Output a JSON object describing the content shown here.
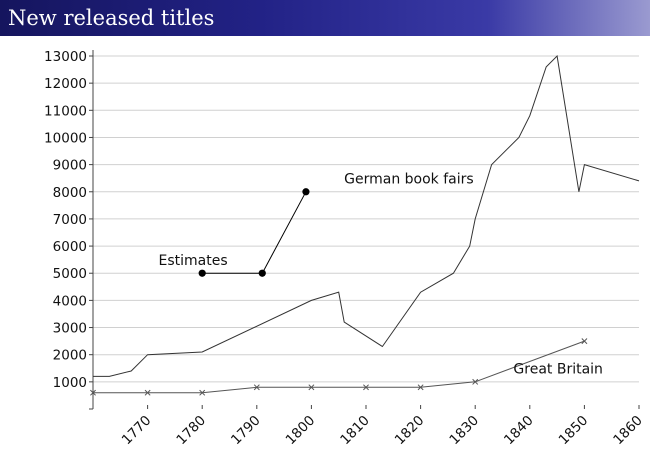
{
  "header": {
    "title": "New released titles"
  },
  "chart_data": {
    "type": "line",
    "title": "",
    "xlabel": "",
    "ylabel": "",
    "xlim": [
      1760,
      1860
    ],
    "ylim": [
      0,
      13000
    ],
    "x_ticks": [
      1770,
      1780,
      1790,
      1800,
      1810,
      1820,
      1830,
      1840,
      1850,
      1860
    ],
    "y_ticks": [
      1000,
      2000,
      3000,
      4000,
      5000,
      6000,
      7000,
      8000,
      9000,
      10000,
      11000,
      12000,
      13000
    ],
    "grid": {
      "horizontal": true,
      "vertical": false
    },
    "series": [
      {
        "key": "german-book-fairs",
        "marker": "none",
        "color": "#333333",
        "points": [
          [
            1760,
            1200
          ],
          [
            1763,
            1200
          ],
          [
            1767,
            1400
          ],
          [
            1770,
            2000
          ],
          [
            1780,
            2100
          ],
          [
            1800,
            4000
          ],
          [
            1805,
            4300
          ],
          [
            1806,
            3200
          ],
          [
            1813,
            2300
          ],
          [
            1820,
            4300
          ],
          [
            1826,
            5000
          ],
          [
            1829,
            6000
          ],
          [
            1830,
            7000
          ],
          [
            1833,
            9000
          ],
          [
            1838,
            10000
          ],
          [
            1840,
            10800
          ],
          [
            1843,
            12600
          ],
          [
            1845,
            13000
          ],
          [
            1849,
            8000
          ],
          [
            1850,
            9000
          ],
          [
            1860,
            8400
          ]
        ]
      },
      {
        "key": "great-britain",
        "marker": "x",
        "color": "#555555",
        "points": [
          [
            1760,
            600
          ],
          [
            1770,
            600
          ],
          [
            1780,
            600
          ],
          [
            1790,
            800
          ],
          [
            1800,
            800
          ],
          [
            1810,
            800
          ],
          [
            1820,
            800
          ],
          [
            1830,
            1000
          ],
          [
            1850,
            2500
          ]
        ]
      },
      {
        "key": "estimates",
        "marker": "dot",
        "color": "#000000",
        "points": [
          [
            1780,
            5000
          ],
          [
            1791,
            5000
          ],
          [
            1799,
            8000
          ]
        ]
      }
    ],
    "annotations": [
      {
        "key": "estimates",
        "text": "Estimates",
        "x": 1772,
        "y": 5300
      },
      {
        "key": "german-book-fairs",
        "text": "German book fairs",
        "x": 1806,
        "y": 8300
      },
      {
        "key": "great-britain",
        "text": "Great Britain",
        "x": 1837,
        "y": 1300
      }
    ]
  }
}
